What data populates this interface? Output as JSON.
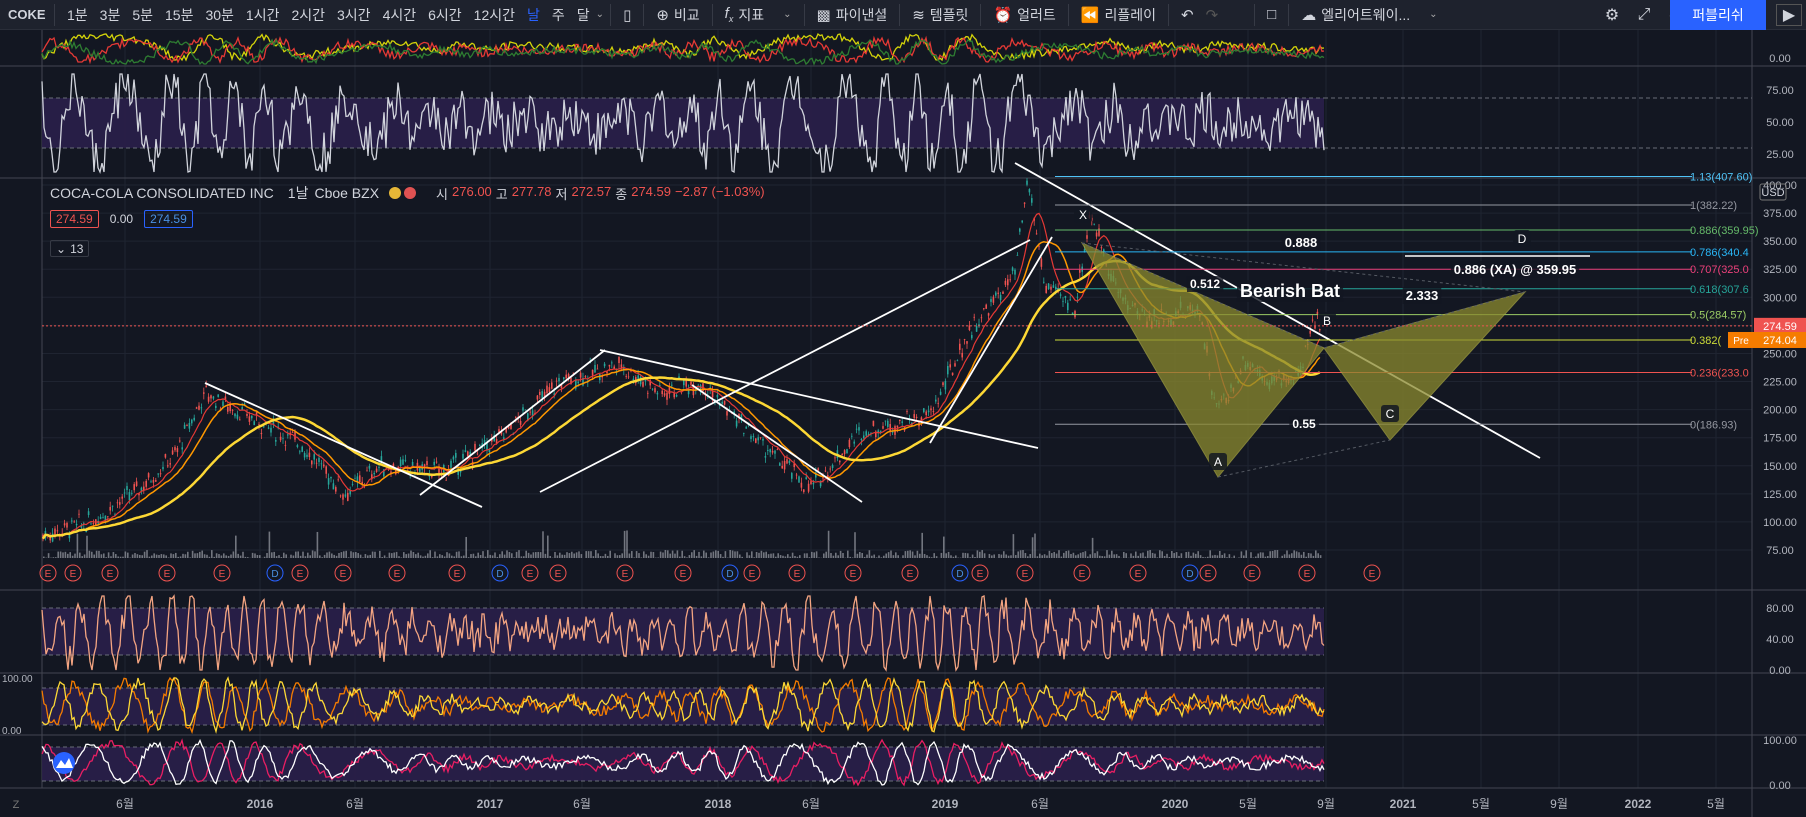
{
  "toolbar": {
    "symbol": "COKE",
    "intervals": [
      "1분",
      "3분",
      "5분",
      "15분",
      "30분",
      "1시간",
      "2시간",
      "3시간",
      "4시간",
      "6시간",
      "12시간",
      "날",
      "주",
      "달"
    ],
    "active_interval": 11,
    "compare_label": "비교",
    "indicators_label": "지표",
    "financials_label": "파이낸셜",
    "templates_label": "템플릿",
    "alert_label": "얼러트",
    "replay_label": "리플레이",
    "layout_label": "엘리어트웨이...",
    "publish_label": "퍼블리쉬"
  },
  "legend": {
    "title": "COCA-COLA CONSOLIDATED INC",
    "interval": "1날",
    "exchange": "Cboe BZX",
    "open_label": "시",
    "open": "276.00",
    "high_label": "고",
    "high": "277.78",
    "low_label": "저",
    "low": "272.57",
    "close_label": "종",
    "close": "274.59",
    "change": "−2.87 (−1.03%)",
    "bid": "274.59",
    "spread": "0.00",
    "ask": "274.59",
    "collapse_count": "13"
  },
  "price_axis": {
    "currency": "USD",
    "ticks": [
      "400.00",
      "375.00",
      "350.00",
      "325.00",
      "300.00",
      "275.00",
      "250.00",
      "225.00",
      "200.00",
      "175.00",
      "150.00",
      "125.00",
      "100.00",
      "75.00"
    ],
    "last_price": "274.59",
    "pre_label": "Pre",
    "pre_price": "274.04",
    "rsi_ticks": [
      "75.00",
      "50.00",
      "25.00"
    ],
    "top_tick": "0.00",
    "stoch_ticks": [
      "80.00",
      "40.00",
      "0.00"
    ],
    "osc2_ticks": [
      "100.00",
      "0.00"
    ],
    "osc3_ticks": [
      "100.00",
      "0.00"
    ]
  },
  "time_axis": [
    "6월",
    "2016",
    "6월",
    "2017",
    "6월",
    "2018",
    "6월",
    "2019",
    "6월",
    "2020",
    "5월",
    "9월",
    "2021",
    "5월",
    "9월",
    "2022",
    "5월"
  ],
  "fib_levels": [
    {
      "label": "1.13(407.60)",
      "color": "#4fc3f7",
      "price": 407.6
    },
    {
      "label": "1(382.22)",
      "color": "#9598a1",
      "price": 382.22
    },
    {
      "label": "0.886(359.95)",
      "color": "#66bb6a",
      "price": 359.95
    },
    {
      "label": "0.786(340.4",
      "color": "#29b6f6",
      "price": 340.4
    },
    {
      "label": "0.707(325.0",
      "color": "#ec407a",
      "price": 325.0
    },
    {
      "label": "0.618(307.6",
      "color": "#26a69a",
      "price": 307.6
    },
    {
      "label": "0.5(284.57)",
      "color": "#9ccc65",
      "price": 284.57
    },
    {
      "label": "0.382(",
      "color": "#cddc39",
      "price": 262.0
    },
    {
      "label": "0.236(233.0",
      "color": "#ef5350",
      "price": 233.0
    },
    {
      "label": "0(186.93)",
      "color": "#9598a1",
      "price": 186.93
    }
  ],
  "pattern": {
    "name": "Bearish Bat",
    "points": {
      "X": "X",
      "A": "A",
      "B": "B",
      "C": "C",
      "D": "D"
    },
    "ratio_xb": "0.512",
    "ratio_ac": "0.55",
    "ratio_bd": "2.333",
    "ratio_xd": "0.888",
    "target": "0.886 (XA) @ 359.95"
  },
  "events": {
    "dividend": "D",
    "earnings": "E"
  },
  "colors": {
    "bg": "#131722",
    "up": "#26a69a",
    "down": "#ef5350",
    "accent": "#2962ff",
    "purple_band": "#2a1f4a",
    "pattern_fill": "#8b8a2e"
  }
}
